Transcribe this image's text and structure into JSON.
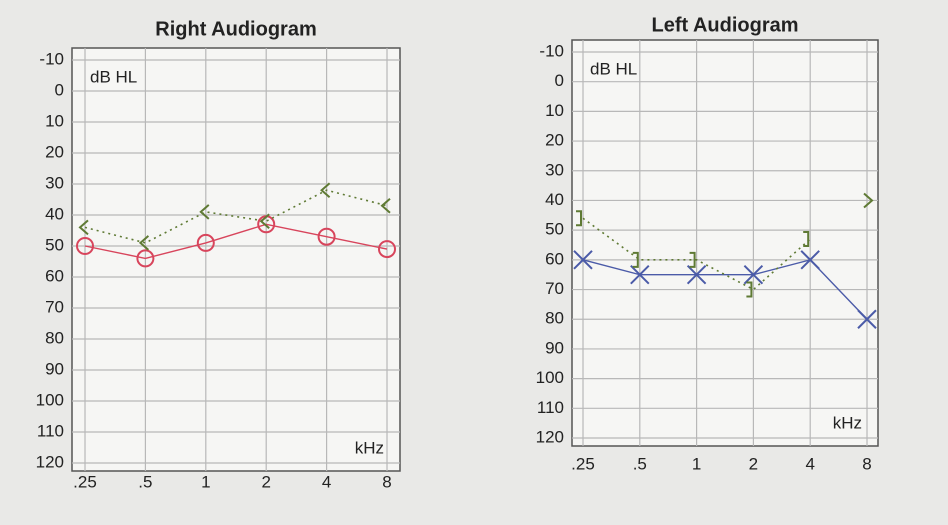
{
  "chart_data": [
    {
      "type": "line",
      "title": "Right Audiogram",
      "y_label": "dB HL",
      "x_label": "kHz",
      "categories": [
        ".25",
        ".5",
        "1",
        "2",
        "4",
        "8"
      ],
      "ylim": [
        -10,
        120
      ],
      "yticks": [
        -10,
        0,
        10,
        20,
        30,
        40,
        50,
        60,
        70,
        80,
        90,
        100,
        110,
        120
      ],
      "y_inverted": true,
      "grid": true,
      "series": [
        {
          "color": "#d8455c",
          "marker": "circle",
          "line_style": "solid",
          "values": [
            50,
            54,
            49,
            43,
            47,
            51
          ]
        },
        {
          "color": "#5f7a34",
          "marker": "less-than",
          "line_style": "dotted",
          "values": [
            44,
            49,
            39,
            42,
            32,
            37
          ]
        }
      ]
    },
    {
      "type": "line",
      "title": "Left Audiogram",
      "y_label": "dB HL",
      "x_label": "kHz",
      "categories": [
        ".25",
        ".5",
        "1",
        "2",
        "4",
        "8"
      ],
      "ylim": [
        -10,
        120
      ],
      "yticks": [
        -10,
        0,
        10,
        20,
        30,
        40,
        50,
        60,
        70,
        80,
        90,
        100,
        110,
        120
      ],
      "y_inverted": true,
      "grid": true,
      "series": [
        {
          "color": "#4b5ba8",
          "marker": "x",
          "line_style": "solid",
          "values": [
            60,
            65,
            65,
            65,
            60,
            80
          ]
        },
        {
          "color": "#5f7a34",
          "marker": "bracket",
          "line_style": "dotted",
          "values": [
            46,
            60,
            60,
            70,
            53,
            null
          ]
        },
        {
          "color": "#5f7a34",
          "marker": "greater-than",
          "line_style": "dotted",
          "values": [
            null,
            null,
            null,
            null,
            null,
            40
          ]
        }
      ]
    }
  ]
}
